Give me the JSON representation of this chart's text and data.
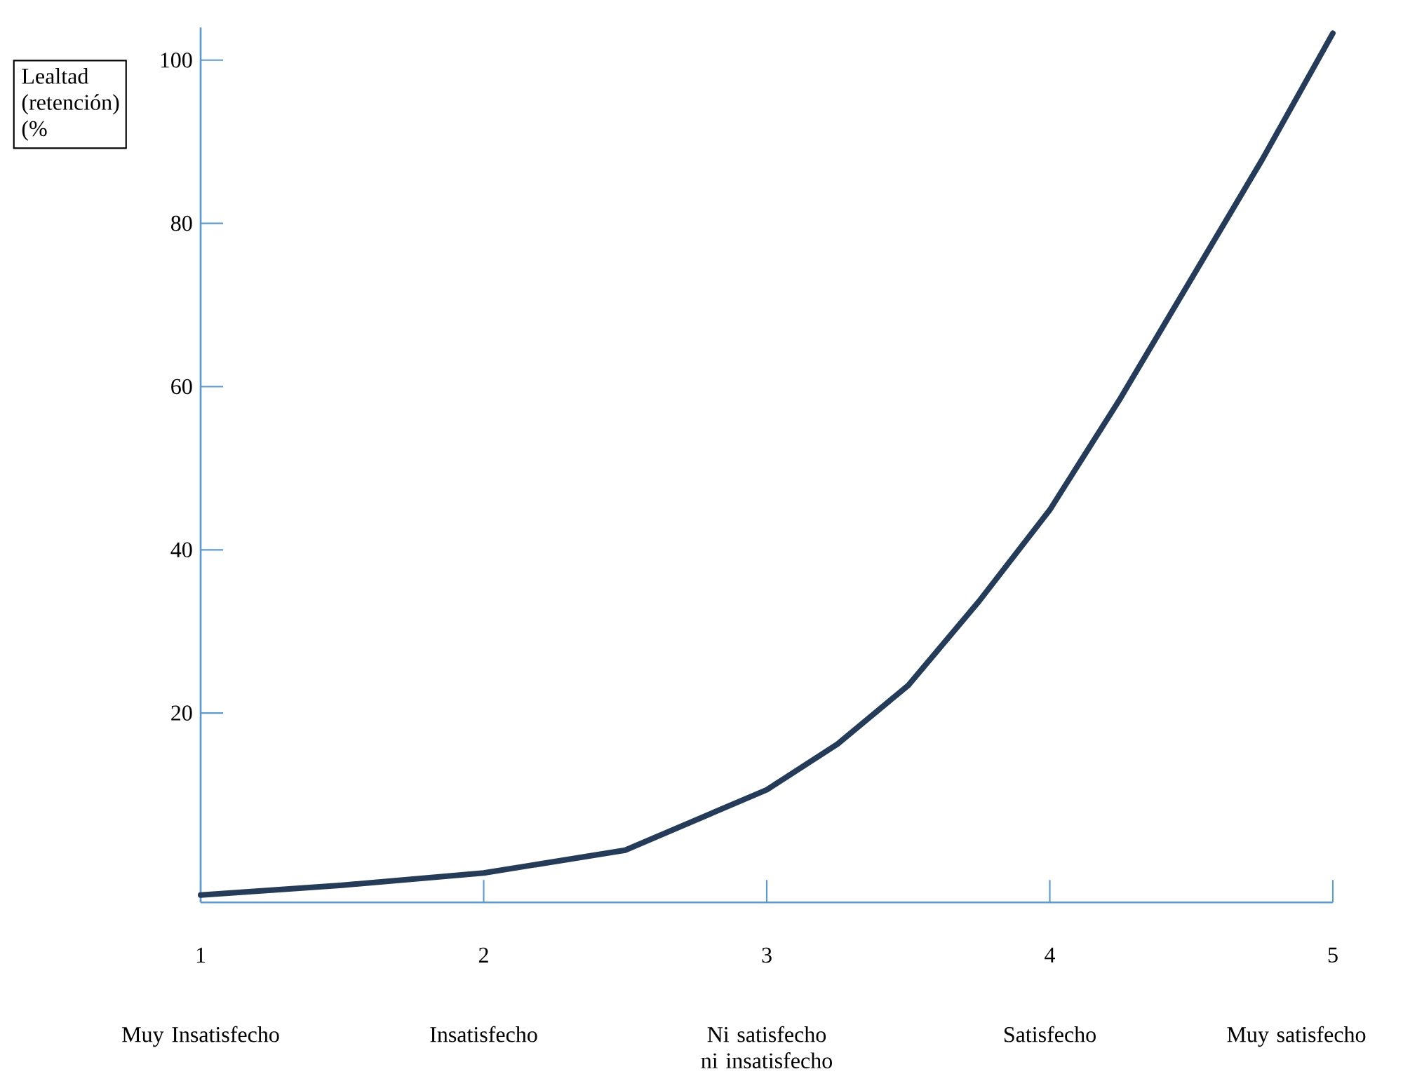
{
  "chart_data": {
    "type": "line",
    "ylabel": "Lealtad (retención) (%",
    "x": [
      1,
      1.5,
      2,
      2.5,
      3,
      3.25,
      3.5,
      3.75,
      4,
      4.25,
      4.5,
      4.75,
      5
    ],
    "series": [
      {
        "color": "#243b5a",
        "values": [
          -2.3,
          -1.1,
          0.4,
          3.2,
          10.6,
          16.2,
          23.4,
          33.7,
          44.9,
          58.6,
          73.2,
          87.8,
          103.3
        ]
      }
    ],
    "xlim": [
      1,
      5
    ],
    "ylim": [
      -3.2,
      104
    ],
    "xticks": [
      1,
      2,
      3,
      4,
      5
    ],
    "yticks": [
      20,
      40,
      60,
      80,
      100
    ],
    "annotations": [
      "Muy Insatisfecho",
      "Insatisfecho",
      "Ni satisfecho ni insatisfecho",
      "Satisfecho",
      "Muy satisfecho"
    ],
    "grid": false,
    "marker": "none",
    "line_style": "solid"
  }
}
